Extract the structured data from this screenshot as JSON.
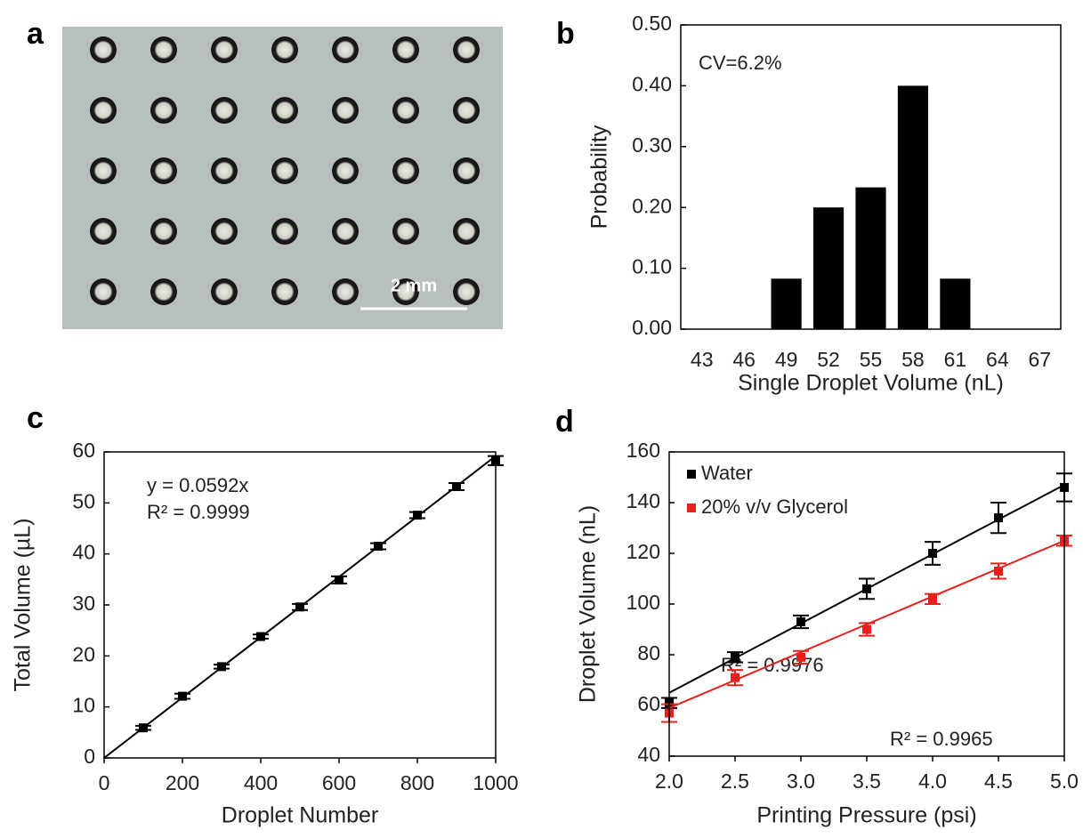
{
  "image_panel": {
    "panel_label": "a",
    "scale_bar": "2 mm"
  },
  "chart_data": [
    {
      "type": "bar",
      "panel_label": "b",
      "categories": [
        "43",
        "46",
        "49",
        "52",
        "55",
        "58",
        "61",
        "64",
        "67"
      ],
      "values": [
        0,
        0,
        0.083,
        0.2,
        0.233,
        0.4,
        0.083,
        0,
        0
      ],
      "color": "#000000",
      "ylim": [
        0,
        0.5
      ],
      "yticks": [
        {
          "value": 0,
          "label": "0.00"
        },
        {
          "value": 0.1,
          "label": "0.10"
        },
        {
          "value": 0.2,
          "label": "0.20"
        },
        {
          "value": 0.3,
          "label": "0.30"
        },
        {
          "value": 0.4,
          "label": "0.40"
        },
        {
          "value": 0.5,
          "label": "0.50"
        }
      ],
      "xlabel": "Single Droplet Volume (nL)",
      "ylabel": "Probability",
      "annotations": [
        "CV=6.2%"
      ]
    },
    {
      "type": "scatter",
      "panel_label": "c",
      "x": [
        100,
        200,
        300,
        400,
        500,
        600,
        700,
        800,
        900,
        1000
      ],
      "values": [
        5.9,
        12.1,
        17.9,
        23.8,
        29.6,
        34.9,
        41.5,
        47.6,
        53.2,
        58.3
      ],
      "errors": [
        0.4,
        0.5,
        0.4,
        0.4,
        0.6,
        0.7,
        0.6,
        0.6,
        0.7,
        0.9
      ],
      "color": "#000000",
      "trendline": {
        "x": [
          0,
          1000
        ],
        "values": [
          0,
          59.2
        ]
      },
      "xlim": [
        0,
        1000
      ],
      "xticks": [
        0,
        200,
        400,
        600,
        800,
        1000
      ],
      "ylim": [
        0,
        60
      ],
      "yticks": [
        0,
        10,
        20,
        30,
        40,
        50,
        60
      ],
      "xlabel": "Droplet Number",
      "ylabel": "Total Volume (µL)",
      "annotations": [
        "y = 0.0592x",
        "R² = 0.9999"
      ]
    },
    {
      "type": "scatter",
      "panel_label": "d",
      "series": [
        {
          "name": "Water",
          "color": "#000000",
          "x": [
            2,
            2.5,
            3,
            3.5,
            4,
            4.5,
            5
          ],
          "values": [
            61,
            79,
            93,
            106,
            120,
            134,
            146
          ],
          "errors": [
            2,
            2,
            2.5,
            4,
            4.5,
            6,
            5.5
          ],
          "trendline": {
            "x": [
              2,
              5
            ],
            "values": [
              65,
              147
            ]
          }
        },
        {
          "name": "20% v/v Glycerol",
          "color": "#e8201c",
          "x": [
            2,
            2.5,
            3,
            3.5,
            4,
            4.5,
            5
          ],
          "values": [
            57,
            71,
            79,
            90,
            102,
            113,
            125
          ],
          "errors": [
            3.5,
            3,
            2.5,
            2.5,
            2,
            3,
            2
          ],
          "trendline": {
            "x": [
              2,
              5
            ],
            "values": [
              59,
              125
            ]
          }
        }
      ],
      "legend": "upper left",
      "xlim": [
        2,
        5
      ],
      "xticks": [
        {
          "value": 2,
          "label": "2.0"
        },
        {
          "value": 2.5,
          "label": "2.5"
        },
        {
          "value": 3,
          "label": "3.0"
        },
        {
          "value": 3.5,
          "label": "3.5"
        },
        {
          "value": 4,
          "label": "4.0"
        },
        {
          "value": 4.5,
          "label": "4.5"
        },
        {
          "value": 5,
          "label": "5.0"
        }
      ],
      "ylim": [
        40,
        160
      ],
      "yticks": [
        40,
        60,
        80,
        100,
        120,
        140,
        160
      ],
      "xlabel": "Printing Pressure (psi)",
      "ylabel": "Droplet Volume (nL)",
      "annotations": [
        "R² = 0.9976",
        "R² = 0.9965"
      ]
    }
  ]
}
